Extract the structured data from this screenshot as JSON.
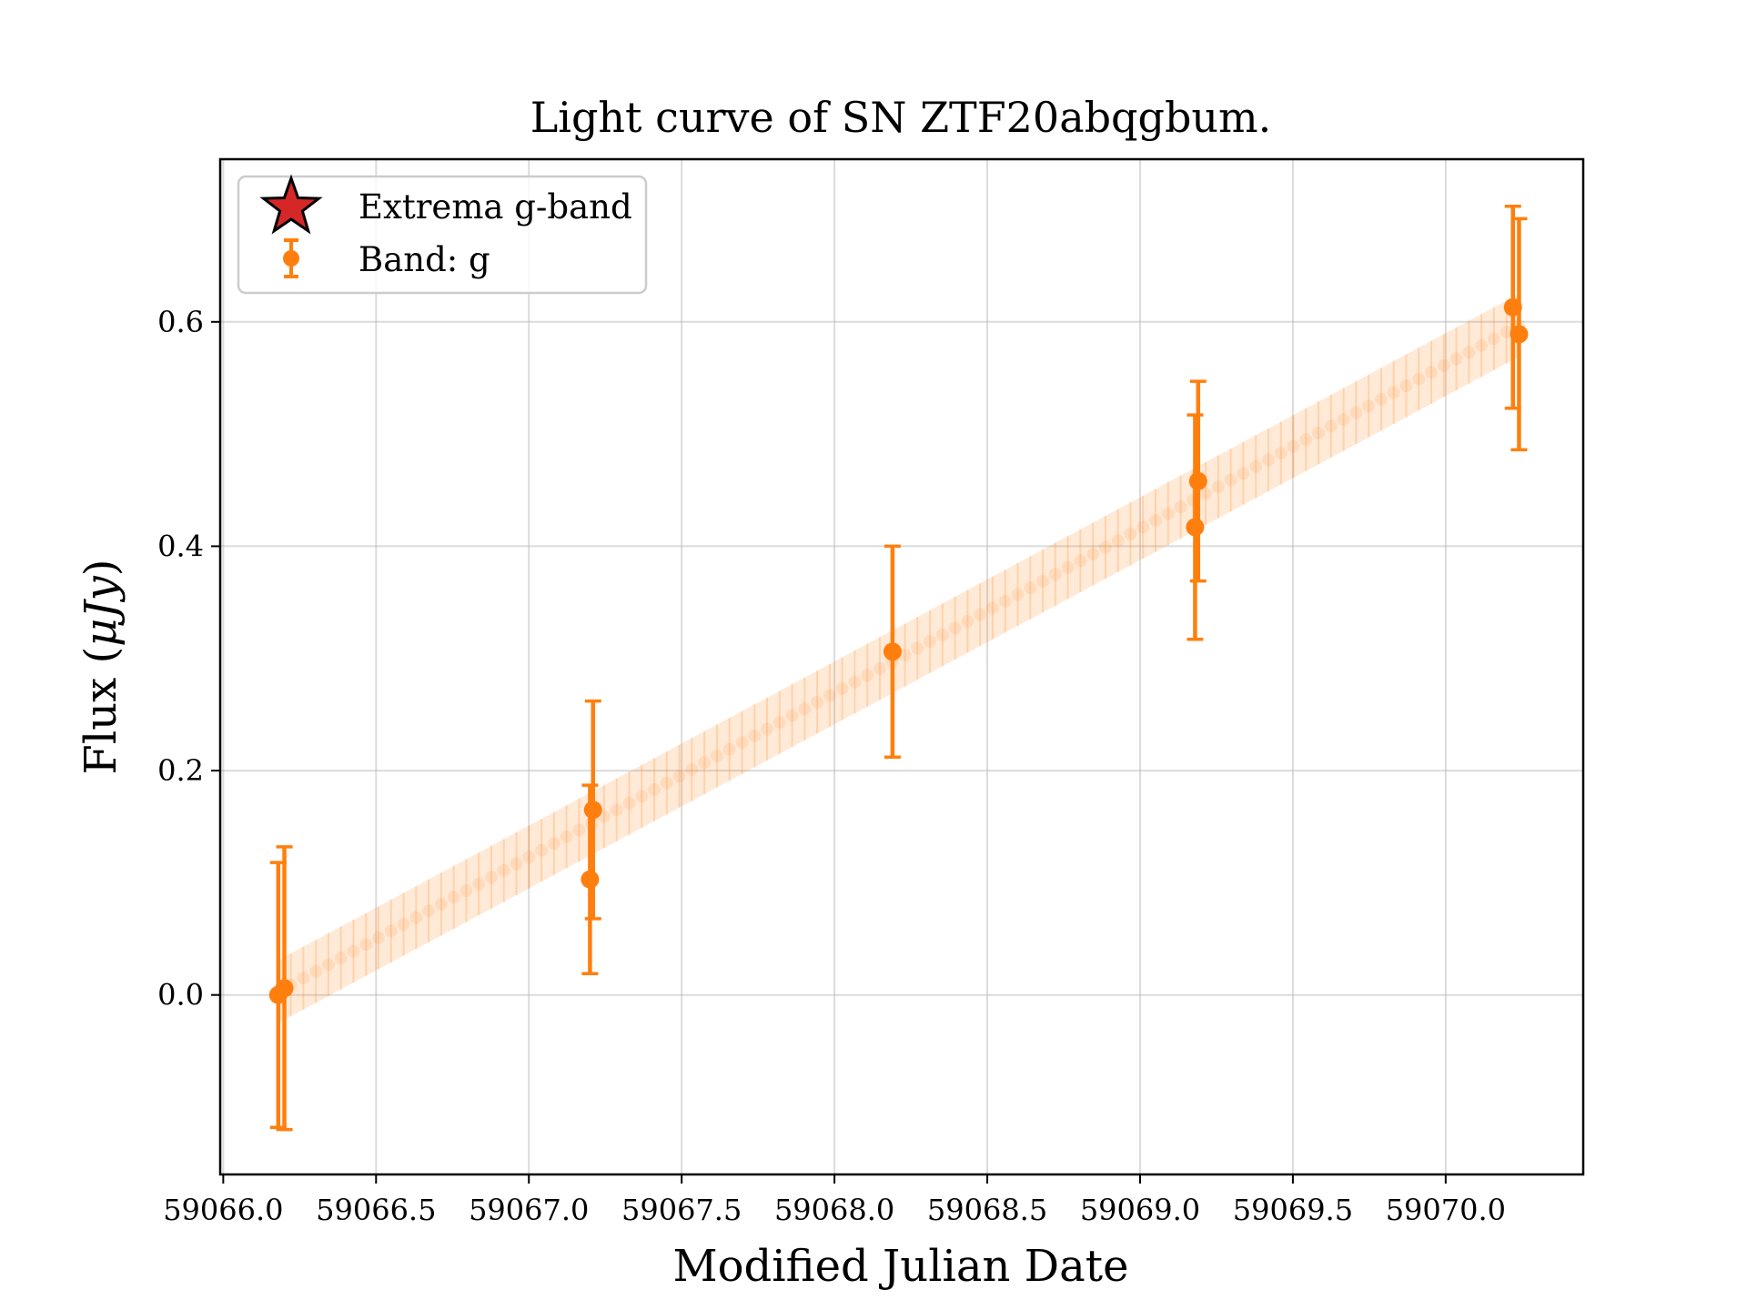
{
  "chart_data": {
    "type": "scatter",
    "title": "Light curve of SN ZTF20abqgbum.",
    "xlabel": "Modified Julian Date",
    "ylabel": "Flux (μJy)",
    "xlim": [
      59065.99,
      59070.45
    ],
    "ylim": [
      -0.16,
      0.745
    ],
    "x_ticks": [
      59066.0,
      59066.5,
      59067.0,
      59067.5,
      59068.0,
      59068.5,
      59069.0,
      59069.5,
      59070.0
    ],
    "x_tick_labels": [
      "59066.0",
      "59066.5",
      "59067.0",
      "59067.5",
      "59068.0",
      "59068.5",
      "59069.0",
      "59069.5",
      "59070.0"
    ],
    "y_ticks": [
      0.0,
      0.2,
      0.4,
      0.6
    ],
    "y_tick_labels": [
      "0.0",
      "0.2",
      "0.4",
      "0.6"
    ],
    "grid": true,
    "legend_position": "top-left",
    "colors": {
      "band_g": "#ff7f0e",
      "extrema": "#d62728"
    },
    "legend": [
      {
        "label": "Extrema g-band",
        "marker": "star-icon"
      },
      {
        "label": "Band: g",
        "marker": "errorbar-point-icon"
      }
    ],
    "series": [
      {
        "name": "Band: g",
        "x": [
          59066.18,
          59066.2,
          59067.2,
          59067.21,
          59068.19,
          59069.18,
          59069.19,
          59070.22,
          59070.24
        ],
        "y": [
          0.0,
          0.006,
          0.103,
          0.165,
          0.306,
          0.417,
          0.458,
          0.613,
          0.589
        ],
        "yerr": [
          0.118,
          0.126,
          0.084,
          0.097,
          0.094,
          0.1,
          0.089,
          0.09,
          0.103
        ]
      }
    ],
    "model": {
      "name": "",
      "x_start": 59066.18,
      "x_end": 59070.24,
      "y_start": 0.003,
      "y_end": 0.597,
      "band_halfwidth": 0.028
    }
  }
}
